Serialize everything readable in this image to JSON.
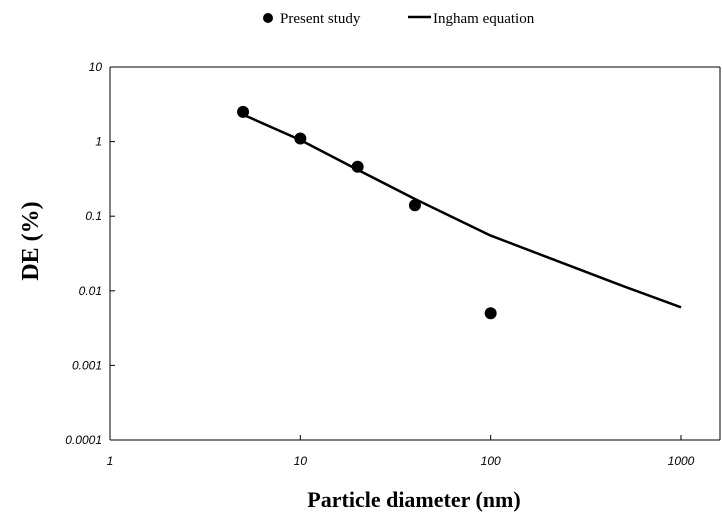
{
  "chart_data": {
    "type": "scatter",
    "xlabel": "Particle diameter (nm)",
    "ylabel": "DE (%)",
    "x_scale": "log",
    "y_scale": "log",
    "xlim": [
      1,
      1000
    ],
    "ylim": [
      0.0001,
      10
    ],
    "x_ticks": [
      "1",
      "10",
      "100",
      "1000"
    ],
    "y_ticks": [
      "0.0001",
      "0.001",
      "0.01",
      "0.1",
      "1",
      "10"
    ],
    "grid": false,
    "legend_position": "top-center",
    "series": [
      {
        "name": "Present study",
        "kind": "scatter",
        "marker": "filled-circle",
        "color": "#000000",
        "x": [
          5,
          10,
          20,
          40,
          100
        ],
        "y": [
          2.5,
          1.1,
          0.46,
          0.14,
          0.005
        ]
      },
      {
        "name": "Ingham equation",
        "kind": "line",
        "color": "#000000",
        "x": [
          5,
          10,
          20,
          40,
          100,
          200,
          500,
          1000
        ],
        "y": [
          2.3,
          1.05,
          0.42,
          0.17,
          0.055,
          0.028,
          0.0115,
          0.006
        ]
      }
    ]
  }
}
